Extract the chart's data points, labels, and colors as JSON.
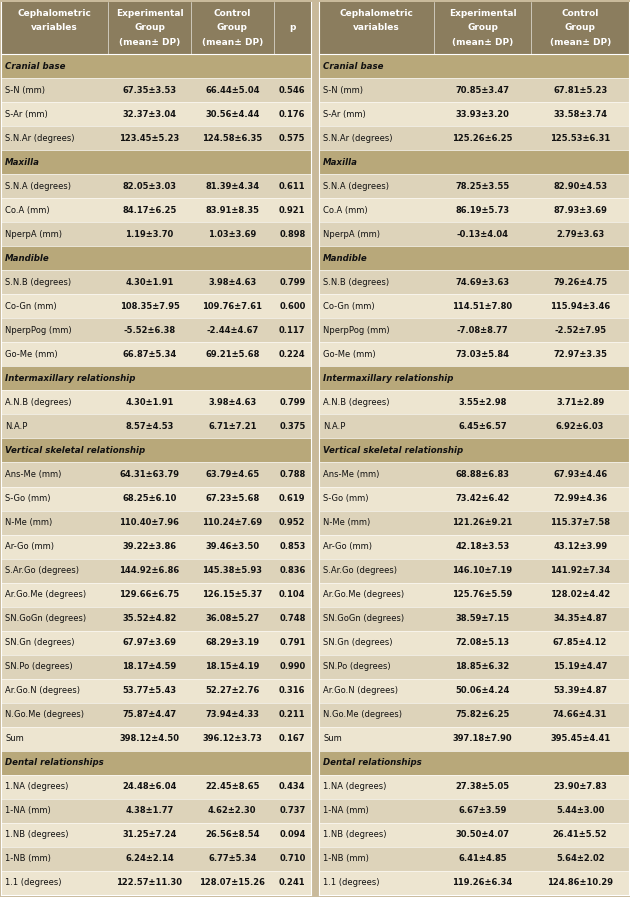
{
  "left_table": {
    "headers_line1": [
      "Cephalometric",
      "Experimental",
      "Control",
      ""
    ],
    "headers_line2": [
      "variables",
      "Group",
      "Group",
      "p"
    ],
    "headers_line3": [
      "",
      "(mean± DP)",
      "(mean± DP)",
      ""
    ],
    "sections": [
      {
        "section_title": "Cranial base",
        "rows": [
          [
            "S-N (mm)",
            "67.35±3.53",
            "66.44±5.04",
            "0.546"
          ],
          [
            "S-Ar (mm)",
            "32.37±3.04",
            "30.56±4.44",
            "0.176"
          ],
          [
            "S.N.Ar (degrees)",
            "123.45±5.23",
            "124.58±6.35",
            "0.575"
          ]
        ]
      },
      {
        "section_title": "Maxilla",
        "rows": [
          [
            "S.N.A (degrees)",
            "82.05±3.03",
            "81.39±4.34",
            "0.611"
          ],
          [
            "Co.A (mm)",
            "84.17±6.25",
            "83.91±8.35",
            "0.921"
          ],
          [
            "NperpA (mm)",
            "1.19±3.70",
            "1.03±3.69",
            "0.898"
          ]
        ]
      },
      {
        "section_title": "Mandible",
        "rows": [
          [
            "S.N.B (degrees)",
            "4.30±1.91",
            "3.98±4.63",
            "0.799"
          ],
          [
            "Co-Gn (mm)",
            "108.35±7.95",
            "109.76±7.61",
            "0.600"
          ],
          [
            "NperpPog (mm)",
            "-5.52±6.38",
            "-2.44±4.67",
            "0.117"
          ],
          [
            "Go-Me (mm)",
            "66.87±5.34",
            "69.21±5.68",
            "0.224"
          ]
        ]
      },
      {
        "section_title": "Intermaxillary relationship",
        "rows": [
          [
            "A.N.B (degrees)",
            "4.30±1.91",
            "3.98±4.63",
            "0.799"
          ],
          [
            "N.A.P",
            "8.57±4.53",
            "6.71±7.21",
            "0.375"
          ]
        ]
      },
      {
        "section_title": "Vertical skeletal relationship",
        "rows": [
          [
            "Ans-Me (mm)",
            "64.31±63.79",
            "63.79±4.65",
            "0.788"
          ],
          [
            "S-Go (mm)",
            "68.25±6.10",
            "67.23±5.68",
            "0.619"
          ],
          [
            "N-Me (mm)",
            "110.40±7.96",
            "110.24±7.69",
            "0.952"
          ],
          [
            "Ar-Go (mm)",
            "39.22±3.86",
            "39.46±3.50",
            "0.853"
          ],
          [
            "S.Ar.Go (degrees)",
            "144.92±6.86",
            "145.38±5.93",
            "0.836"
          ],
          [
            "Ar.Go.Me (degrees)",
            "129.66±6.75",
            "126.15±5.37",
            "0.104"
          ],
          [
            "SN.GoGn (degrees)",
            "35.52±4.82",
            "36.08±5.27",
            "0.748"
          ],
          [
            "SN.Gn (degrees)",
            "67.97±3.69",
            "68.29±3.19",
            "0.791"
          ],
          [
            "SN.Po (degrees)",
            "18.17±4.59",
            "18.15±4.19",
            "0.990"
          ],
          [
            "Ar.Go.N (degrees)",
            "53.77±5.43",
            "52.27±2.76",
            "0.316"
          ],
          [
            "N.Go.Me (degrees)",
            "75.87±4.47",
            "73.94±4.33",
            "0.211"
          ],
          [
            "Sum",
            "398.12±4.50",
            "396.12±3.73",
            "0.167"
          ]
        ]
      },
      {
        "section_title": "Dental relationships",
        "rows": [
          [
            "1.NA (degrees)",
            "24.48±6.04",
            "22.45±8.65",
            "0.434"
          ],
          [
            "1-NA (mm)",
            "4.38±1.77",
            "4.62±2.30",
            "0.737"
          ],
          [
            "1.NB (degrees)",
            "31.25±7.24",
            "26.56±8.54",
            "0.094"
          ],
          [
            "1-NB (mm)",
            "6.24±2.14",
            "6.77±5.34",
            "0.710"
          ],
          [
            "1.1 (degrees)",
            "122.57±11.30",
            "128.07±15.26",
            "0.241"
          ]
        ]
      }
    ]
  },
  "right_table": {
    "headers_line1": [
      "Cephalometric",
      "Experimental",
      "Control"
    ],
    "headers_line2": [
      "variables",
      "Group",
      "Group"
    ],
    "headers_line3": [
      "",
      "(mean± DP)",
      "(mean± DP)"
    ],
    "sections": [
      {
        "section_title": "Cranial base",
        "rows": [
          [
            "S-N (mm)",
            "70.85±3.47",
            "67.81±5.23"
          ],
          [
            "S-Ar (mm)",
            "33.93±3.20",
            "33.58±3.74"
          ],
          [
            "S.N.Ar (degrees)",
            "125.26±6.25",
            "125.53±6.31"
          ]
        ]
      },
      {
        "section_title": "Maxilla",
        "rows": [
          [
            "S.N.A (degrees)",
            "78.25±3.55",
            "82.90±4.53"
          ],
          [
            "Co.A (mm)",
            "86.19±5.73",
            "87.93±3.69"
          ],
          [
            "NperpA (mm)",
            "-0.13±4.04",
            "2.79±3.63"
          ]
        ]
      },
      {
        "section_title": "Mandible",
        "rows": [
          [
            "S.N.B (degrees)",
            "74.69±3.63",
            "79.26±4.75"
          ],
          [
            "Co-Gn (mm)",
            "114.51±7.80",
            "115.94±3.46"
          ],
          [
            "NperpPog (mm)",
            "-7.08±8.77",
            "-2.52±7.95"
          ],
          [
            "Go-Me (mm)",
            "73.03±5.84",
            "72.97±3.35"
          ]
        ]
      },
      {
        "section_title": "Intermaxillary relationship",
        "rows": [
          [
            "A.N.B (degrees)",
            "3.55±2.98",
            "3.71±2.89"
          ],
          [
            "N.A.P",
            "6.45±6.57",
            "6.92±6.03"
          ]
        ]
      },
      {
        "section_title": "Vertical skeletal relationship",
        "rows": [
          [
            "Ans-Me (mm)",
            "68.88±6.83",
            "67.93±4.46"
          ],
          [
            "S-Go (mm)",
            "73.42±6.42",
            "72.99±4.36"
          ],
          [
            "N-Me (mm)",
            "121.26±9.21",
            "115.37±7.58"
          ],
          [
            "Ar-Go (mm)",
            "42.18±3.53",
            "43.12±3.99"
          ],
          [
            "S.Ar.Go (degrees)",
            "146.10±7.19",
            "141.92±7.34"
          ],
          [
            "Ar.Go.Me (degrees)",
            "125.76±5.59",
            "128.02±4.42"
          ],
          [
            "SN.GoGn (degrees)",
            "38.59±7.15",
            "34.35±4.87"
          ],
          [
            "SN.Gn (degrees)",
            "72.08±5.13",
            "67.85±4.12"
          ],
          [
            "SN.Po (degrees)",
            "18.85±6.32",
            "15.19±4.47"
          ],
          [
            "Ar.Go.N (degrees)",
            "50.06±4.24",
            "53.39±4.87"
          ],
          [
            "N.Go.Me (degrees)",
            "75.82±6.25",
            "74.66±4.31"
          ],
          [
            "Sum",
            "397.18±7.90",
            "395.45±4.41"
          ]
        ]
      },
      {
        "section_title": "Dental relationships",
        "rows": [
          [
            "1.NA (degrees)",
            "27.38±5.05",
            "23.90±7.83"
          ],
          [
            "1-NA (mm)",
            "6.67±3.59",
            "5.44±3.00"
          ],
          [
            "1.NB (degrees)",
            "30.50±4.07",
            "26.41±5.52"
          ],
          [
            "1-NB (mm)",
            "6.41±4.85",
            "5.64±2.02"
          ],
          [
            "1.1 (degrees)",
            "119.26±6.34",
            "124.86±10.29"
          ]
        ]
      }
    ]
  },
  "bg_color": "#c9ba9b",
  "header_bg": "#8b7d5e",
  "section_title_bg": "#b8a87a",
  "row_bg_even": "#ede5d0",
  "row_bg_odd": "#ddd3ba",
  "text_color": "#111111",
  "header_text_color": "#ffffff",
  "col_sep_color": "#ffffff"
}
